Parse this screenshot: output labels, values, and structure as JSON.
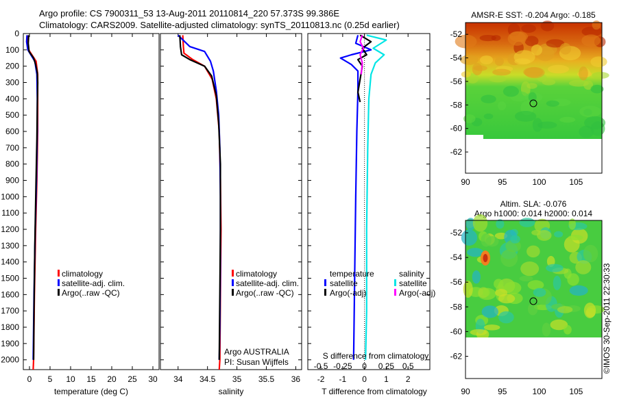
{
  "header": {
    "title_line1": "Argo profile: CS 7900311_53 13-Aug-2011 20110814_220 57.373S 99.386E",
    "title_line2": "Climatology: CARS2009. Satellite-adjusted climatology: synTS_20110813.nc (0.25d earlier)"
  },
  "credit": "©IMOS 30-Sep-2011 22:30:33",
  "colors": {
    "climatology": "#ff0000",
    "satellite": "#0000ff",
    "argo": "#000000",
    "sal_satellite": "#00e5e5",
    "sal_argo": "#ff00ff"
  },
  "chart_data": [
    {
      "type": "line",
      "id": "temperature",
      "xlabel": "temperature (deg C)",
      "xlim": [
        -1.5,
        31.5
      ],
      "ylim": [
        2060,
        0
      ],
      "xticks": [
        "0",
        "5",
        "10",
        "15",
        "20",
        "25",
        "30"
      ],
      "xtick_values": [
        0,
        5,
        10,
        15,
        20,
        25,
        30
      ],
      "yticks": [
        "0",
        "100",
        "200",
        "300",
        "400",
        "500",
        "600",
        "700",
        "800",
        "900",
        "1000",
        "1100",
        "1200",
        "1300",
        "1400",
        "1500",
        "1600",
        "1700",
        "1800",
        "1900",
        "2000"
      ],
      "ytick_values": [
        0,
        100,
        200,
        300,
        400,
        500,
        600,
        700,
        800,
        900,
        1000,
        1100,
        1200,
        1300,
        1400,
        1500,
        1600,
        1700,
        1800,
        1900,
        2000
      ],
      "legend": [
        "climatology",
        "satellite-adj. clim.",
        "Argo(..raw -QC)"
      ],
      "series": [
        {
          "name": "climatology",
          "color": "#ff0000",
          "points": [
            [
              -0.4,
              10
            ],
            [
              -0.5,
              50
            ],
            [
              -0.2,
              100
            ],
            [
              1.6,
              170
            ],
            [
              2.0,
              250
            ],
            [
              2.0,
              400
            ],
            [
              2.0,
              600
            ],
            [
              1.8,
              900
            ],
            [
              1.5,
              1200
            ],
            [
              1.2,
              1600
            ],
            [
              1.0,
              2000
            ],
            [
              0.9,
              2060
            ]
          ]
        },
        {
          "name": "satellite-adj. clim.",
          "color": "#0000ff",
          "points": [
            [
              -0.6,
              10
            ],
            [
              -0.7,
              50
            ],
            [
              -0.4,
              100
            ],
            [
              1.3,
              170
            ],
            [
              1.8,
              250
            ],
            [
              1.9,
              400
            ],
            [
              1.9,
              600
            ],
            [
              1.7,
              900
            ],
            [
              1.4,
              1200
            ],
            [
              1.1,
              1600
            ],
            [
              0.9,
              2000
            ]
          ]
        },
        {
          "name": "Argo(..raw -QC)",
          "color": "#000000",
          "points": [
            [
              -0.2,
              10
            ],
            [
              -0.3,
              60
            ],
            [
              -0.1,
              110
            ],
            [
              1.0,
              150
            ],
            [
              1.5,
              190
            ],
            [
              1.9,
              240
            ],
            [
              2.0,
              300
            ],
            [
              1.9,
              450
            ],
            [
              1.8,
              650
            ],
            [
              1.6,
              900
            ],
            [
              1.3,
              1300
            ],
            [
              1.1,
              1700
            ],
            [
              1.0,
              2000
            ]
          ]
        }
      ]
    },
    {
      "type": "line",
      "id": "salinity",
      "xlabel": "salinity",
      "xlim": [
        33.7,
        36.1
      ],
      "ylim": [
        2060,
        0
      ],
      "xticks": [
        "34",
        "34.5",
        "35",
        "35.5",
        "36"
      ],
      "xtick_values": [
        34,
        34.5,
        35,
        35.5,
        36
      ],
      "legend": [
        "climatology",
        "satellite-adj. clim.",
        "Argo(..raw -QC)"
      ],
      "annotation": [
        "Argo AUSTRALIA",
        "PI: Susan Wijffels"
      ],
      "series": [
        {
          "name": "climatology",
          "color": "#ff0000",
          "points": [
            [
              34.08,
              10
            ],
            [
              34.09,
              80
            ],
            [
              34.1,
              120
            ],
            [
              34.25,
              160
            ],
            [
              34.45,
              200
            ],
            [
              34.58,
              280
            ],
            [
              34.65,
              400
            ],
            [
              34.7,
              600
            ],
            [
              34.72,
              900
            ],
            [
              34.73,
              1200
            ],
            [
              34.72,
              1600
            ],
            [
              34.71,
              2000
            ],
            [
              34.7,
              2060
            ]
          ]
        },
        {
          "name": "satellite-adj. clim.",
          "color": "#0000ff",
          "points": [
            [
              34.0,
              10
            ],
            [
              34.2,
              80
            ],
            [
              34.45,
              110
            ],
            [
              34.55,
              170
            ],
            [
              34.6,
              230
            ],
            [
              34.65,
              350
            ],
            [
              34.69,
              500
            ],
            [
              34.71,
              700
            ],
            [
              34.72,
              1000
            ],
            [
              34.72,
              1400
            ],
            [
              34.71,
              1800
            ],
            [
              34.7,
              2000
            ]
          ]
        },
        {
          "name": "Argo(..raw -QC)",
          "color": "#000000",
          "points": [
            [
              34.03,
              10
            ],
            [
              34.04,
              80
            ],
            [
              34.06,
              130
            ],
            [
              34.2,
              160
            ],
            [
              34.45,
              200
            ],
            [
              34.57,
              260
            ],
            [
              34.65,
              380
            ],
            [
              34.69,
              550
            ],
            [
              34.72,
              800
            ],
            [
              34.72,
              1200
            ],
            [
              34.71,
              1600
            ],
            [
              34.7,
              2000
            ]
          ]
        }
      ]
    },
    {
      "type": "line",
      "id": "difference",
      "xlabel": "T difference from climatology",
      "xlabel_top": "S difference from climatology",
      "xlim": [
        -2.6,
        3.0
      ],
      "ylim": [
        2060,
        0
      ],
      "xticks": [
        "-2",
        "-1",
        "0",
        "1",
        "2"
      ],
      "xtick_values": [
        -2,
        -1,
        0,
        1,
        2
      ],
      "sticks": [
        "-0.5",
        "-0.25",
        "0",
        "0.25",
        "0.5"
      ],
      "stick_values": [
        -0.5,
        -0.25,
        0,
        0.25,
        0.5
      ],
      "legend_temperature": {
        "title": "temperature",
        "items": [
          "satellite",
          "Argo(-adj)"
        ]
      },
      "legend_salinity": {
        "title": "salinity",
        "items": [
          "satellite",
          "Argo(-adj)"
        ]
      },
      "series": [
        {
          "name": "satellite",
          "group": "temperature",
          "color": "#0000ff",
          "points": [
            [
              -0.3,
              10
            ],
            [
              -0.4,
              60
            ],
            [
              0.3,
              100
            ],
            [
              -0.6,
              130
            ],
            [
              -1.1,
              150
            ],
            [
              -0.6,
              190
            ],
            [
              -0.3,
              230
            ],
            [
              -0.3,
              350
            ],
            [
              -0.35,
              600
            ],
            [
              -0.4,
              1000
            ],
            [
              -0.45,
              1500
            ],
            [
              -0.5,
              2000
            ]
          ]
        },
        {
          "name": "Argo(-adj)",
          "group": "temperature",
          "color": "#000000",
          "points": [
            [
              -0.2,
              10
            ],
            [
              0.3,
              50
            ],
            [
              -0.1,
              90
            ],
            [
              0.1,
              130
            ],
            [
              -0.3,
              160
            ],
            [
              -0.1,
              200
            ],
            [
              -0.2,
              280
            ],
            [
              -0.3,
              360
            ],
            [
              -0.2,
              420
            ]
          ]
        },
        {
          "name": "satellite",
          "group": "salinity",
          "color": "#00e5e5",
          "points": [
            [
              0.1,
              10
            ],
            [
              1.0,
              40
            ],
            [
              0.4,
              90
            ],
            [
              0.9,
              130
            ],
            [
              0.5,
              180
            ],
            [
              0.3,
              250
            ],
            [
              0.2,
              400
            ],
            [
              0.15,
              700
            ],
            [
              0.1,
              1200
            ],
            [
              0.1,
              1700
            ],
            [
              0.05,
              2000
            ]
          ]
        },
        {
          "name": "Argo(-adj)",
          "group": "salinity",
          "color": "#ff00ff",
          "points": [
            [
              -0.1,
              10
            ],
            [
              -0.2,
              50
            ],
            [
              -0.05,
              90
            ],
            [
              -0.2,
              130
            ],
            [
              -0.1,
              180
            ],
            [
              -0.15,
              250
            ]
          ]
        }
      ]
    },
    {
      "type": "heatmap",
      "id": "sst_map",
      "title": "AMSR-E SST: -0.204  Argo: -0.185",
      "xticks": [
        "90",
        "95",
        "100",
        "105"
      ],
      "xtick_values": [
        90,
        95,
        100,
        105
      ],
      "yticks": [
        "-52",
        "-54",
        "-56",
        "-58",
        "-60",
        "-62"
      ],
      "ytick_values": [
        -52,
        -54,
        -56,
        -58,
        -60,
        -62
      ],
      "xlim": [
        90,
        108.5
      ],
      "ylim": [
        -63.8,
        -51
      ]
    },
    {
      "type": "heatmap",
      "id": "sla_map",
      "title_line1": "Altim. SLA: -0.076",
      "title_line2": "Argo h1000: 0.014  h2000: 0.014",
      "xticks": [
        "90",
        "95",
        "100",
        "105"
      ],
      "xtick_values": [
        90,
        95,
        100,
        105
      ],
      "yticks": [
        "-52",
        "-54",
        "-56",
        "-58",
        "-60",
        "-62"
      ],
      "ytick_values": [
        -52,
        -54,
        -56,
        -58,
        -60,
        -62
      ],
      "xlim": [
        90,
        108.5
      ],
      "ylim": [
        -63.8,
        -51
      ]
    }
  ]
}
